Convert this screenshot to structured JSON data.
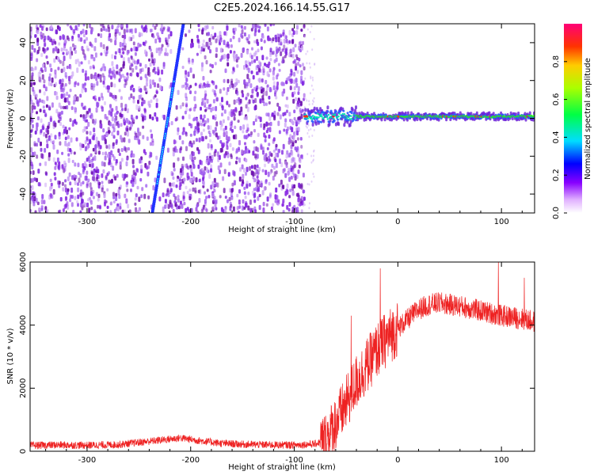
{
  "title": "C2E5.2024.166.14.55.G17",
  "colors": {
    "scatter_purple": "#8a2be2",
    "line_red": "#ee2222",
    "axis": "#000000"
  },
  "chart_data": [
    {
      "type": "heatmap",
      "title": "C2E5.2024.166.14.55.G17",
      "xlabel": "Height of straight line (km)",
      "ylabel": "Frequency (Hz)",
      "xlim": [
        -355,
        132
      ],
      "ylim": [
        -50,
        50
      ],
      "xticks": [
        -300,
        -200,
        -100,
        0,
        100
      ],
      "xtick_labels": [
        "-300",
        "-200",
        "-100",
        "0",
        "100"
      ],
      "yticks": [
        -40,
        -20,
        0,
        20,
        40
      ],
      "ytick_labels": [
        "-40",
        "-20",
        "0",
        "20",
        "40"
      ],
      "colorbar": {
        "label": "Normalized spectral amplitude",
        "range": [
          0,
          1
        ],
        "ticks": [
          0.0,
          0.2,
          0.4,
          0.6,
          0.8
        ],
        "tick_labels": [
          "0.0",
          "0.2",
          "0.4",
          "0.6",
          "0.8"
        ]
      },
      "features": {
        "noise_region_x": [
          -355,
          -90
        ],
        "diagonal_track": {
          "x_start": -237,
          "y_start": -50,
          "x_end": -207,
          "y_end": 50
        },
        "signal_band": {
          "x_start": -90,
          "x_end": 132,
          "frequency": 1
        }
      }
    },
    {
      "type": "line",
      "xlabel": "Height of straight line (km)",
      "ylabel": "SNR (10 * v/v)",
      "xlim": [
        -355,
        132
      ],
      "ylim": [
        0,
        6000
      ],
      "xticks": [
        -300,
        -200,
        -100,
        0,
        100
      ],
      "xtick_labels": [
        "-300",
        "-200",
        "-100",
        "0",
        "100"
      ],
      "yticks": [
        0,
        2000,
        4000,
        6000
      ],
      "ytick_labels": [
        "0",
        "2000",
        "4000",
        "6000"
      ],
      "envelope": {
        "x": [
          -355,
          -330,
          -300,
          -270,
          -250,
          -230,
          -210,
          -190,
          -170,
          -150,
          -120,
          -100,
          -80,
          -70,
          -60,
          -50,
          -40,
          -30,
          -20,
          -10,
          0,
          10,
          20,
          30,
          40,
          60,
          80,
          100,
          110,
          120,
          132
        ],
        "y": [
          180,
          200,
          190,
          210,
          280,
          350,
          420,
          330,
          250,
          220,
          200,
          200,
          230,
          350,
          900,
          1500,
          2200,
          2700,
          3200,
          3600,
          3900,
          4200,
          4500,
          4650,
          4700,
          4600,
          4450,
          4300,
          4250,
          4200,
          4100
        ]
      },
      "noise_amplitude": [
        {
          "x_max": -75,
          "amp": 120
        },
        {
          "x_max": 0,
          "amp": 900
        },
        {
          "x_max": 132,
          "amp": 350
        }
      ],
      "spikes": [
        {
          "x": -45,
          "y": 4300
        },
        {
          "x": -17,
          "y": 5800
        },
        {
          "x": 97,
          "y": 6000
        },
        {
          "x": 122,
          "y": 5500
        }
      ]
    }
  ]
}
